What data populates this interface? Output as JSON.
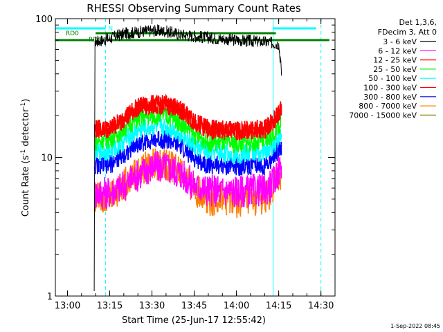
{
  "chart_data": {
    "type": "line",
    "title": "RHESSI Observing Summary Count Rates",
    "xlabel": "Start Time (25-Jun-17 12:55:42)",
    "ylabel_main": "Count Rate (s",
    "ylabel_sup1": "-1",
    "ylabel_mid": " detector",
    "ylabel_sup2": "-1",
    "ylabel_end": ")",
    "yscale": "log",
    "xlim": [
      "12:55:42",
      "14:35:00"
    ],
    "ylim": [
      1,
      100
    ],
    "x_ticks": [
      "13:00",
      "13:15",
      "13:30",
      "13:45",
      "14:00",
      "14:15",
      "14:30"
    ],
    "y_ticks": [
      "1",
      "10",
      "100"
    ],
    "legend_header": [
      "Det 1,3,6,",
      "FDecim 3, Att 0"
    ],
    "series": [
      {
        "name": "3 - 6 keV",
        "color": "#000000",
        "points": [
          [
            "13:09:30",
            1.0
          ],
          [
            "13:09:40",
            68
          ],
          [
            "13:15",
            72
          ],
          [
            "13:20",
            78
          ],
          [
            "13:25",
            80
          ],
          [
            "13:30",
            82
          ],
          [
            "13:35",
            81
          ],
          [
            "13:40",
            77
          ],
          [
            "13:45",
            75
          ],
          [
            "13:50",
            73
          ],
          [
            "14:00",
            70
          ],
          [
            "14:10",
            68
          ],
          [
            "14:15",
            66
          ],
          [
            "14:16",
            40
          ]
        ]
      },
      {
        "name": "6 - 12 keV",
        "color": "#ff00ff",
        "points": [
          [
            "13:09:40",
            5.5
          ],
          [
            "13:15",
            5.6
          ],
          [
            "13:20",
            6.2
          ],
          [
            "13:25",
            7.5
          ],
          [
            "13:30",
            8.5
          ],
          [
            "13:35",
            8.5
          ],
          [
            "13:40",
            7.8
          ],
          [
            "13:45",
            6.2
          ],
          [
            "13:50",
            5.8
          ],
          [
            "14:00",
            5.7
          ],
          [
            "14:10",
            5.8
          ],
          [
            "14:13",
            6.5
          ],
          [
            "14:15",
            8.0
          ],
          [
            "14:16",
            8.5
          ]
        ]
      },
      {
        "name": "12 - 25 keV",
        "color": "#ff0000",
        "points": [
          [
            "13:09:40",
            16
          ],
          [
            "13:15",
            16
          ],
          [
            "13:20",
            19
          ],
          [
            "13:25",
            23
          ],
          [
            "13:30",
            24
          ],
          [
            "13:35",
            24
          ],
          [
            "13:40",
            22
          ],
          [
            "13:45",
            18
          ],
          [
            "13:50",
            16
          ],
          [
            "14:00",
            15.5
          ],
          [
            "14:10",
            16
          ],
          [
            "14:13",
            18
          ],
          [
            "14:15",
            21
          ],
          [
            "14:16",
            23
          ]
        ]
      },
      {
        "name": "25 - 50 keV",
        "color": "#00ff00",
        "points": [
          [
            "13:09:40",
            13
          ],
          [
            "13:15",
            13.5
          ],
          [
            "13:20",
            16
          ],
          [
            "13:25",
            19
          ],
          [
            "13:30",
            20
          ],
          [
            "13:35",
            20
          ],
          [
            "13:40",
            18
          ],
          [
            "13:45",
            14.5
          ],
          [
            "13:50",
            13
          ],
          [
            "14:00",
            12.5
          ],
          [
            "14:10",
            13
          ],
          [
            "14:13",
            14.5
          ],
          [
            "14:15",
            17
          ],
          [
            "14:16",
            18
          ]
        ]
      },
      {
        "name": "50 - 100 keV",
        "color": "#00ffff",
        "points": [
          [
            "13:09:40",
            11
          ],
          [
            "13:15",
            11
          ],
          [
            "13:20",
            13
          ],
          [
            "13:25",
            15.5
          ],
          [
            "13:30",
            16.5
          ],
          [
            "13:35",
            16.5
          ],
          [
            "13:40",
            15
          ],
          [
            "13:45",
            12
          ],
          [
            "13:50",
            11
          ],
          [
            "14:00",
            10.5
          ],
          [
            "14:10",
            11
          ],
          [
            "14:13",
            12
          ],
          [
            "14:15",
            14
          ],
          [
            "14:16",
            15
          ]
        ]
      },
      {
        "name": "100 - 300 keV",
        "color": "#ff0000",
        "points": [
          [
            "13:09:40",
            16
          ],
          [
            "13:15",
            16
          ],
          [
            "13:20",
            19
          ],
          [
            "13:25",
            23
          ],
          [
            "13:30",
            24
          ],
          [
            "13:35",
            24
          ],
          [
            "13:40",
            22
          ],
          [
            "13:45",
            18
          ],
          [
            "13:50",
            16
          ],
          [
            "14:00",
            15.5
          ],
          [
            "14:10",
            16
          ],
          [
            "14:13",
            18
          ],
          [
            "14:15",
            21
          ],
          [
            "14:16",
            23
          ]
        ]
      },
      {
        "name": "300 - 800 keV",
        "color": "#0000ff",
        "points": [
          [
            "13:09:40",
            8.8
          ],
          [
            "13:15",
            8.8
          ],
          [
            "13:20",
            10.5
          ],
          [
            "13:25",
            12.5
          ],
          [
            "13:30",
            13.5
          ],
          [
            "13:35",
            13.5
          ],
          [
            "13:40",
            12
          ],
          [
            "13:45",
            9.8
          ],
          [
            "13:50",
            8.9
          ],
          [
            "14:00",
            8.6
          ],
          [
            "14:10",
            8.8
          ],
          [
            "14:13",
            9.8
          ],
          [
            "14:15",
            11.5
          ],
          [
            "14:16",
            12
          ]
        ]
      },
      {
        "name": "800 - 7000 keV",
        "color": "#ff8000",
        "points": [
          [
            "13:09:40",
            5.2
          ],
          [
            "13:15",
            5.2
          ],
          [
            "13:20",
            6.3
          ],
          [
            "13:25",
            8.0
          ],
          [
            "13:30",
            8.8
          ],
          [
            "13:35",
            8.8
          ],
          [
            "13:40",
            7.8
          ],
          [
            "13:45",
            5.8
          ],
          [
            "13:50",
            5.0
          ],
          [
            "14:00",
            4.8
          ],
          [
            "14:10",
            5.0
          ],
          [
            "14:13",
            5.8
          ],
          [
            "14:15",
            7.2
          ],
          [
            "14:16",
            7.5
          ]
        ]
      },
      {
        "name": "7000 - 15000 keV",
        "color": "#808000",
        "points": []
      }
    ],
    "annotations": {
      "saa_flag": {
        "label": "N",
        "color": "#00ffff"
      },
      "rd0_bars": [
        {
          "label": "RD0",
          "color": "#008000"
        },
        {
          "label": "RD0",
          "color": "#008000"
        }
      ]
    },
    "cyan_solid_lines": [
      "12:55:42",
      "14:13:00"
    ],
    "cyan_dashed_lines": [
      "13:13:30",
      "14:30:00"
    ],
    "timestamp": "1-Sep-2022 08:45"
  }
}
